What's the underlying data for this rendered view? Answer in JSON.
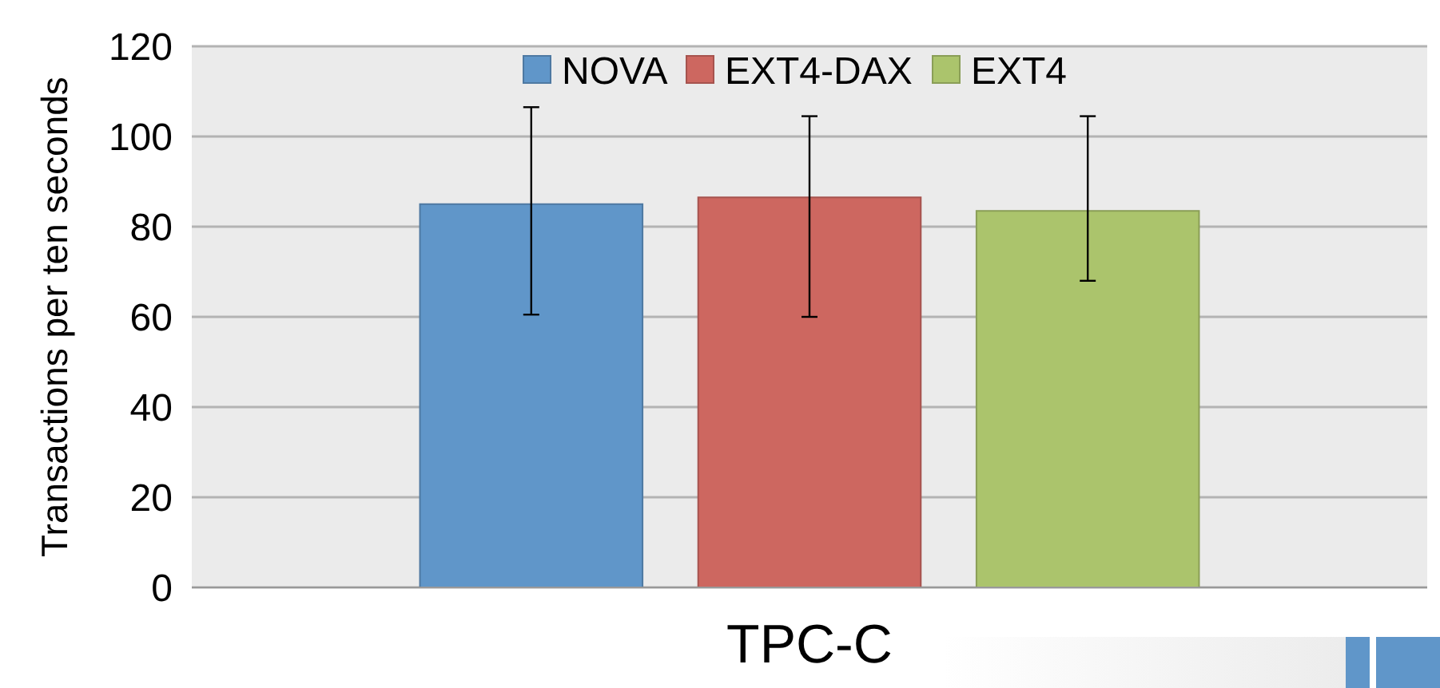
{
  "chart_data": {
    "type": "bar",
    "ylabel": "Transactions per ten seconds",
    "categories": [
      "TPC-C"
    ],
    "series": [
      {
        "name": "NOVA",
        "color": "#6096c9",
        "values": [
          85
        ],
        "errors": [
          [
            60.5,
            106.5
          ]
        ]
      },
      {
        "name": "EXT4-DAX",
        "color": "#cd6760",
        "values": [
          86.5
        ],
        "errors": [
          [
            60,
            104.5
          ]
        ]
      },
      {
        "name": "EXT4",
        "color": "#abc46c",
        "values": [
          83.5
        ],
        "errors": [
          [
            68,
            104.5
          ]
        ]
      }
    ],
    "ylim": [
      0,
      120
    ],
    "yticks": [
      0,
      20,
      40,
      60,
      80,
      100,
      120
    ],
    "grid": "y",
    "legend": "top"
  }
}
